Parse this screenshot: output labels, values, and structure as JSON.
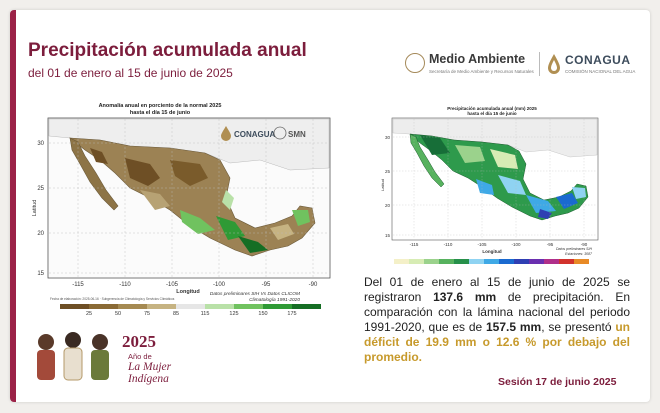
{
  "header": {
    "title": "Precipitación acumulada anual",
    "subtitle": "del 01 de enero al 15 de junio de 2025"
  },
  "logos": {
    "medio_ambiente": "Medio Ambiente",
    "medio_ambiente_sub": "Secretaría de Medio Ambiente y Recursos Naturales",
    "conagua": "CONAGUA",
    "conagua_sub": "COMISIÓN NACIONAL DEL AGUA"
  },
  "map_anomaly": {
    "title_line1": "Anomalía anual en porciento de la normal 2025",
    "title_line2": "hasta el día 15 de junio",
    "ylabel": "Latitud",
    "xlabel": "Longitud",
    "lat_ticks": [
      "30",
      "25",
      "20",
      "15"
    ],
    "lon_ticks": [
      "-115",
      "-110",
      "-105",
      "-100",
      "-95",
      "-90"
    ],
    "logo_conagua": "CONAGUA",
    "logo_smn": "SMN",
    "notes": [
      "Datos preliminares SIH Vs Datos CLICOM",
      "Climatología 1991-2020"
    ],
    "footer_note": "Fecha de elaboración: 2025-06-16 · Subgerencia de Climatología y Servicios Climáticos",
    "legend_values": [
      "25",
      "50",
      "75",
      "85",
      "115",
      "125",
      "150",
      "175"
    ],
    "legend_colors": [
      "#6e4f25",
      "#8a6a35",
      "#a58a52",
      "#c6b382",
      "#e6e6e6",
      "#b9e1a8",
      "#70c25f",
      "#2f9a35",
      "#156e24"
    ]
  },
  "map_accum": {
    "title_line1": "Precipitación acumulada anual (mm) 2025",
    "title_line2": "hasta el día 15 de junio",
    "ylabel": "Latitud",
    "xlabel": "Longitud",
    "lat_ticks": [
      "30",
      "25",
      "20",
      "15"
    ],
    "lon_ticks": [
      "-115",
      "-110",
      "-105",
      "-100",
      "-95",
      "-90"
    ],
    "notes": [
      "Datos preliminares SIH",
      "Estaciones: 3087"
    ],
    "legend_colors": [
      "#f4f0c8",
      "#d7ecb4",
      "#9bd28c",
      "#57b25e",
      "#26904a",
      "#8fd3f2",
      "#3fa9e6",
      "#1a6ad0",
      "#2f3fb3",
      "#6a2fb0",
      "#b02f8a",
      "#d2322d",
      "#e88a26"
    ]
  },
  "summary": {
    "t1": "Del 01 de enero al 15 de junio de 2025 se registraron ",
    "v1": "137.6 mm",
    "t2": " de precipitación. En comparación con la lámina nacional del periodo 1991-2020, que es de ",
    "v2": "157.5 mm",
    "t3": ", se presentó ",
    "highlight": "un déficit de 19.9 mm o 12.6 % por debajo del promedio."
  },
  "year_logo": {
    "year": "2025",
    "line1": "Año de",
    "line2": "La Mujer",
    "line3": "Indígena"
  },
  "session": "Sesión 17 de junio 2025",
  "colors": {
    "accent": "#7c1d3c",
    "highlight": "#c79a2c"
  }
}
